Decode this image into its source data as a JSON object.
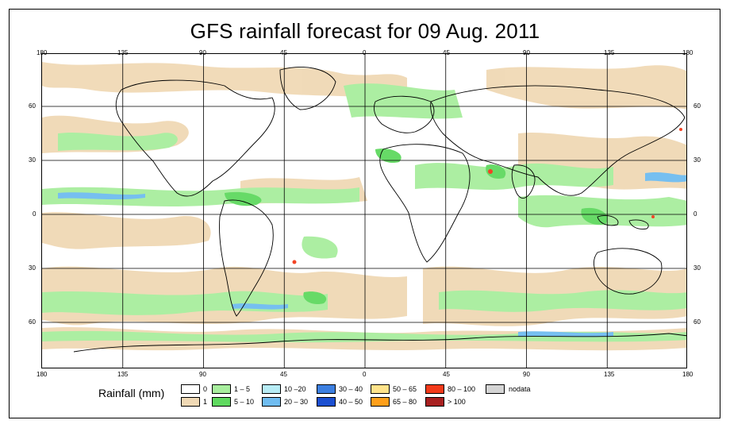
{
  "title": "GFS rainfall forecast for 09 Aug. 2011",
  "axes": {
    "x_ticks": [
      "180",
      "135",
      "90",
      "45",
      "0",
      "45",
      "90",
      "135",
      "180"
    ],
    "y_ticks": [
      "60",
      "30",
      "0",
      "30",
      "60"
    ]
  },
  "legend": {
    "title": "Rainfall (mm)",
    "items": [
      {
        "label": "0",
        "color": "#ffffff"
      },
      {
        "label": "1",
        "color": "#f0d9b5"
      },
      {
        "label": "1 – 5",
        "color": "#a8ee9e"
      },
      {
        "label": "5 – 10",
        "color": "#5fd95f"
      },
      {
        "label": "10 –20",
        "color": "#b7ecf5"
      },
      {
        "label": "20 – 30",
        "color": "#6fbcf0"
      },
      {
        "label": "30 – 40",
        "color": "#3c7fe0"
      },
      {
        "label": "40 – 50",
        "color": "#1b4fd0"
      },
      {
        "label": "50 – 65",
        "color": "#ffe38a"
      },
      {
        "label": "65 – 80",
        "color": "#ff9f1a"
      },
      {
        "label": "80 – 100",
        "color": "#f23a1a"
      },
      {
        "label": "> 100",
        "color": "#a82020"
      },
      {
        "label": "nodata",
        "color": "#d4d4d4"
      }
    ]
  },
  "colors": {
    "light_rain": "#f0d9b5",
    "moderate_rain": "#a8ee9e",
    "heavy_rain": "#5fd95f",
    "very_heavy": "#6fbcf0",
    "extreme": "#f23a1a"
  }
}
